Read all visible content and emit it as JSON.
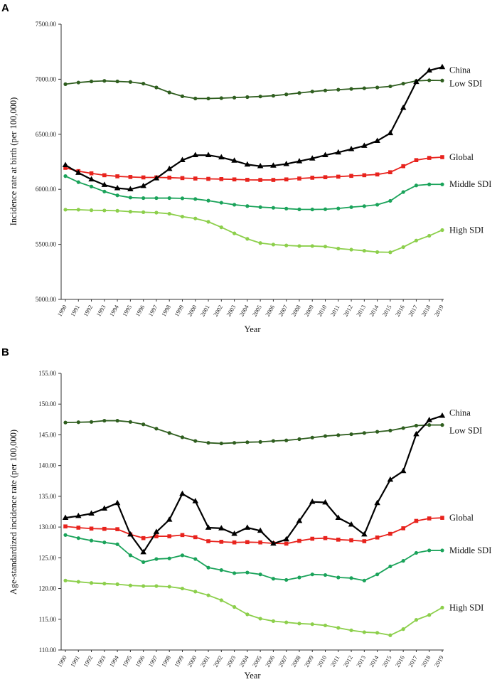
{
  "panels": [
    {
      "letter": "A",
      "xlabel": "Year",
      "ylabel": "Incidence rate at birth (per 100,000)"
    },
    {
      "letter": "B",
      "xlabel": "Year",
      "ylabel": "Age-standardized incidence rate (per 100,000)"
    }
  ],
  "chart_data": [
    {
      "type": "line",
      "panel": "A",
      "title": "",
      "xlabel": "Year",
      "ylabel": "Incidence rate at birth (per 100,000)",
      "ylim": [
        5000,
        7500
      ],
      "yticks": [
        "5000.00",
        "5500.00",
        "6000.00",
        "6500.00",
        "7000.00",
        "7500.00"
      ],
      "ytick_values": [
        5000,
        5500,
        6000,
        6500,
        7000,
        7500
      ],
      "categories": [
        "1990",
        "1991",
        "1992",
        "1993",
        "1994",
        "1995",
        "1996",
        "1997",
        "1998",
        "1999",
        "2000",
        "2001",
        "2002",
        "2003",
        "2004",
        "2005",
        "2006",
        "2007",
        "2008",
        "2009",
        "2010",
        "2011",
        "2012",
        "2013",
        "2014",
        "2015",
        "2016",
        "2017",
        "2018",
        "2019"
      ],
      "series": [
        {
          "name": "China",
          "color": "#000000",
          "marker": "triangle",
          "values": [
            6220,
            6150,
            6090,
            6040,
            6010,
            6000,
            6030,
            6100,
            6185,
            6265,
            6310,
            6310,
            6290,
            6260,
            6225,
            6210,
            6215,
            6230,
            6255,
            6280,
            6310,
            6335,
            6365,
            6395,
            6440,
            6510,
            6740,
            6975,
            7080,
            7110
          ]
        },
        {
          "name": "Low SDI",
          "color": "#2f5e1f",
          "marker": "circle",
          "values": [
            6955,
            6970,
            6980,
            6985,
            6980,
            6975,
            6960,
            6925,
            6880,
            6845,
            6825,
            6825,
            6828,
            6833,
            6838,
            6843,
            6850,
            6862,
            6875,
            6888,
            6898,
            6905,
            6912,
            6918,
            6925,
            6935,
            6960,
            6985,
            6990,
            6988
          ]
        },
        {
          "name": "Global",
          "color": "#e8231d",
          "marker": "square",
          "values": [
            6195,
            6165,
            6145,
            6128,
            6118,
            6112,
            6108,
            6108,
            6106,
            6102,
            6098,
            6095,
            6093,
            6090,
            6086,
            6085,
            6085,
            6090,
            6098,
            6105,
            6110,
            6115,
            6122,
            6128,
            6135,
            6155,
            6210,
            6265,
            6285,
            6292
          ]
        },
        {
          "name": "Middle SDI",
          "color": "#1aa35a",
          "marker": "circle",
          "values": [
            6120,
            6065,
            6025,
            5980,
            5945,
            5925,
            5920,
            5920,
            5920,
            5918,
            5912,
            5897,
            5878,
            5860,
            5848,
            5838,
            5832,
            5825,
            5818,
            5817,
            5819,
            5826,
            5838,
            5847,
            5860,
            5895,
            5975,
            6035,
            6045,
            6045
          ]
        },
        {
          "name": "High SDI",
          "color": "#8ccf4b",
          "marker": "circle",
          "values": [
            5815,
            5815,
            5810,
            5808,
            5805,
            5797,
            5792,
            5788,
            5778,
            5752,
            5735,
            5705,
            5655,
            5600,
            5550,
            5512,
            5498,
            5490,
            5485,
            5485,
            5480,
            5462,
            5452,
            5442,
            5430,
            5428,
            5475,
            5535,
            5578,
            5630
          ]
        }
      ]
    },
    {
      "type": "line",
      "panel": "B",
      "title": "",
      "xlabel": "Year",
      "ylabel": "Age-standardized incidence rate (per 100,000)",
      "ylim": [
        110,
        155
      ],
      "yticks": [
        "110.00",
        "115.00",
        "120.00",
        "125.00",
        "130.00",
        "135.00",
        "140.00",
        "145.00",
        "150.00",
        "155.00"
      ],
      "ytick_values": [
        110,
        115,
        120,
        125,
        130,
        135,
        140,
        145,
        150,
        155
      ],
      "categories": [
        "1990",
        "1991",
        "1992",
        "1993",
        "1994",
        "1995",
        "1996",
        "1997",
        "1998",
        "1999",
        "2000",
        "2001",
        "2002",
        "2003",
        "2004",
        "2005",
        "2006",
        "2007",
        "2008",
        "2009",
        "2010",
        "2011",
        "2012",
        "2013",
        "2014",
        "2015",
        "2016",
        "2017",
        "2018",
        "2019"
      ],
      "series": [
        {
          "name": "China",
          "color": "#000000",
          "marker": "triangle",
          "values": [
            131.5,
            131.8,
            132.2,
            133.0,
            133.9,
            128.8,
            125.9,
            129.2,
            131.2,
            135.4,
            134.2,
            129.9,
            129.8,
            128.9,
            129.9,
            129.4,
            127.3,
            128.0,
            131.0,
            134.1,
            134.0,
            131.5,
            130.4,
            128.8,
            133.9,
            137.7,
            139.1,
            145.1,
            147.4,
            148.1
          ]
        },
        {
          "name": "Low SDI",
          "color": "#2f5e1f",
          "marker": "circle",
          "values": [
            147.0,
            147.05,
            147.1,
            147.3,
            147.3,
            147.1,
            146.7,
            146.0,
            145.3,
            144.6,
            144.0,
            143.7,
            143.6,
            143.7,
            143.8,
            143.85,
            144.0,
            144.1,
            144.3,
            144.55,
            144.8,
            144.95,
            145.1,
            145.3,
            145.5,
            145.7,
            146.1,
            146.5,
            146.6,
            146.6
          ]
        },
        {
          "name": "Global",
          "color": "#e8231d",
          "marker": "square",
          "values": [
            130.1,
            129.9,
            129.75,
            129.7,
            129.65,
            128.8,
            128.2,
            128.5,
            128.5,
            128.7,
            128.35,
            127.7,
            127.6,
            127.5,
            127.55,
            127.5,
            127.35,
            127.3,
            127.75,
            128.1,
            128.2,
            127.95,
            127.85,
            127.7,
            128.3,
            128.9,
            129.8,
            131.0,
            131.4,
            131.5
          ]
        },
        {
          "name": "Middle SDI",
          "color": "#1aa35a",
          "marker": "circle",
          "values": [
            128.7,
            128.2,
            127.8,
            127.5,
            127.2,
            125.4,
            124.3,
            124.8,
            124.9,
            125.4,
            124.8,
            123.4,
            123.0,
            122.5,
            122.6,
            122.3,
            121.6,
            121.4,
            121.8,
            122.3,
            122.2,
            121.8,
            121.7,
            121.3,
            122.3,
            123.6,
            124.5,
            125.8,
            126.2,
            126.2
          ]
        },
        {
          "name": "High SDI",
          "color": "#8ccf4b",
          "marker": "circle",
          "values": [
            121.3,
            121.1,
            120.9,
            120.8,
            120.7,
            120.5,
            120.4,
            120.4,
            120.3,
            120.0,
            119.5,
            118.9,
            118.1,
            117.0,
            115.8,
            115.1,
            114.7,
            114.5,
            114.3,
            114.2,
            114.0,
            113.6,
            113.2,
            112.9,
            112.8,
            112.4,
            113.4,
            114.9,
            115.7,
            116.9
          ]
        }
      ]
    }
  ]
}
